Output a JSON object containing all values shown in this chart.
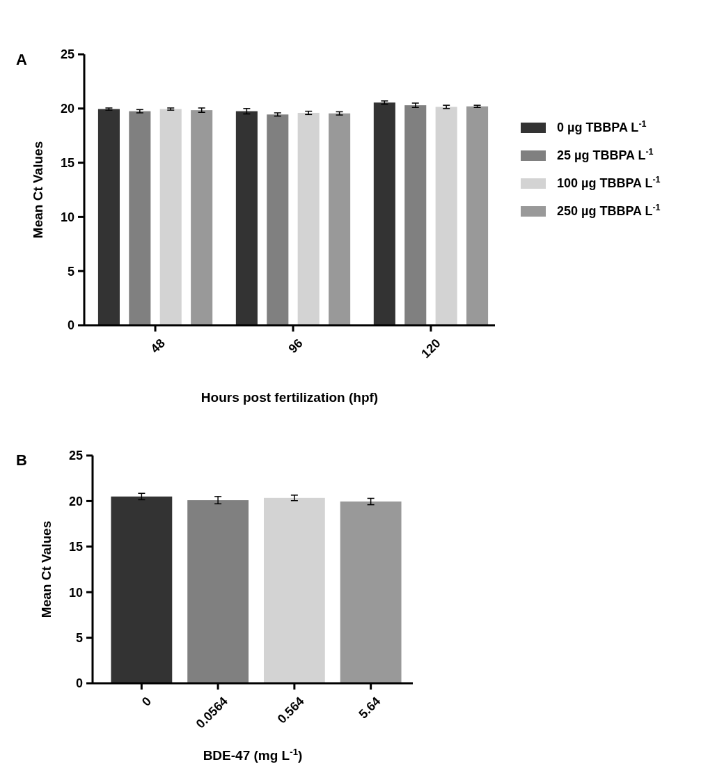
{
  "chart_data": [
    {
      "type": "bar",
      "title": "A",
      "xlabel": "Hours post fertilization (hpf)",
      "ylabel": "Mean Ct Values",
      "categories": [
        "48",
        "96",
        "120"
      ],
      "ylim": [
        0,
        25
      ],
      "yticks": [
        0,
        5,
        10,
        15,
        20,
        25
      ],
      "grid": false,
      "legend": "right",
      "series": [
        {
          "name": "0 µg TBBPA L$^{-1}$",
          "color": "#333333",
          "values": [
            19.95,
            19.75,
            20.55
          ],
          "errors": [
            0.1,
            0.25,
            0.15
          ]
        },
        {
          "name": "25 µg TBBPA L$^{-1}$",
          "color": "#808080",
          "values": [
            19.75,
            19.45,
            20.3
          ],
          "errors": [
            0.15,
            0.15,
            0.2
          ]
        },
        {
          "name": "100 µg TBBPA L$^{-1}$",
          "color": "#d3d3d3",
          "values": [
            19.95,
            19.6,
            20.15
          ],
          "errors": [
            0.1,
            0.15,
            0.15
          ]
        },
        {
          "name": "250 µg TBBPA L$^{-1}$",
          "color": "#999999",
          "values": [
            19.85,
            19.55,
            20.2
          ],
          "errors": [
            0.2,
            0.15,
            0.1
          ]
        }
      ]
    },
    {
      "type": "bar",
      "title": "B",
      "xlabel": "BDE-47 (mg L$^{-1}$)",
      "ylabel": "Mean Ct Values",
      "categories": [
        "0",
        "0.0564",
        "0.564",
        "5.64"
      ],
      "ylim": [
        0,
        25
      ],
      "yticks": [
        0,
        5,
        10,
        15,
        20,
        25
      ],
      "grid": false,
      "legend": false,
      "values": [
        20.5,
        20.1,
        20.35,
        19.95
      ],
      "colors": [
        "#333333",
        "#808080",
        "#d3d3d3",
        "#999999"
      ],
      "errors": [
        0.35,
        0.4,
        0.3,
        0.35
      ]
    }
  ]
}
